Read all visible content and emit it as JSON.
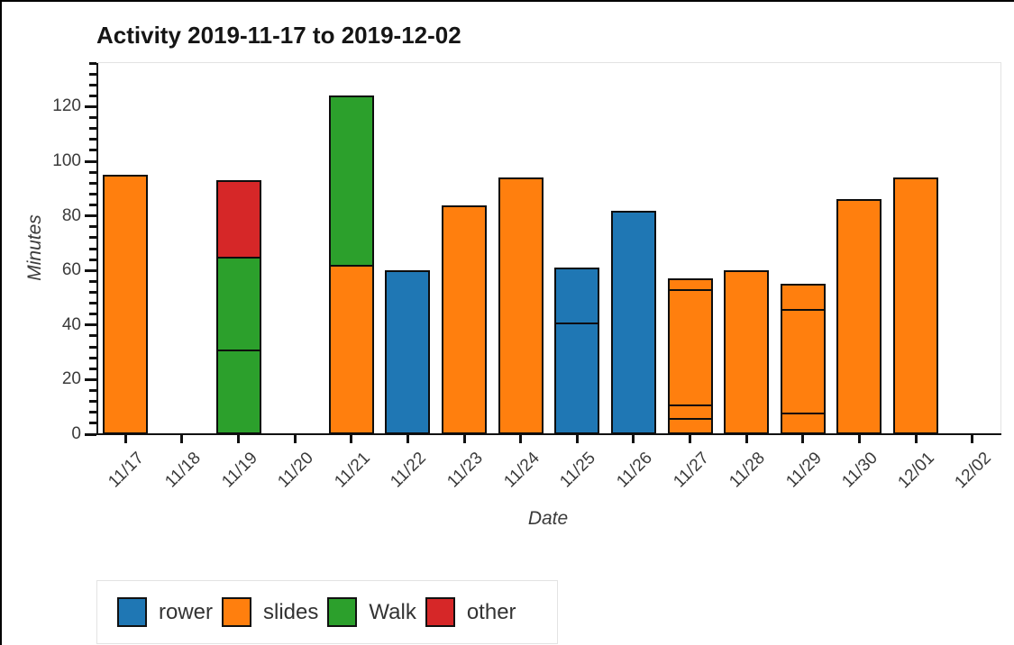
{
  "chart_data": {
    "type": "bar",
    "stacked": true,
    "title": "Activity 2019-11-17 to 2019-12-02",
    "xlabel": "Date",
    "ylabel": "Minutes",
    "categories": [
      "11/17",
      "11/18",
      "11/19",
      "11/20",
      "11/21",
      "11/22",
      "11/23",
      "11/24",
      "11/25",
      "11/26",
      "11/27",
      "11/28",
      "11/29",
      "11/30",
      "12/01",
      "12/02"
    ],
    "yticks": [
      0,
      20,
      40,
      60,
      80,
      100,
      120
    ],
    "minor_tick_step": 4,
    "ylim": [
      0,
      136
    ],
    "grid": "off",
    "legend_position": "bottom-left",
    "colors": {
      "rower": "#1f77b4",
      "slides": "#ff7f0e",
      "Walk": "#2ca02c",
      "other": "#d62728"
    },
    "bars": [
      {
        "date": "11/17",
        "total": 95,
        "segments": [
          {
            "activity": "slides",
            "minutes": 95
          }
        ]
      },
      {
        "date": "11/18",
        "total": 0,
        "segments": []
      },
      {
        "date": "11/19",
        "total": 93,
        "segments": [
          {
            "activity": "Walk",
            "minutes": 31
          },
          {
            "activity": "Walk",
            "minutes": 34
          },
          {
            "activity": "other",
            "minutes": 28
          }
        ]
      },
      {
        "date": "11/20",
        "total": 0,
        "segments": []
      },
      {
        "date": "11/21",
        "total": 124,
        "segments": [
          {
            "activity": "slides",
            "minutes": 62
          },
          {
            "activity": "Walk",
            "minutes": 62
          }
        ]
      },
      {
        "date": "11/22",
        "total": 60,
        "segments": [
          {
            "activity": "rower",
            "minutes": 60
          }
        ]
      },
      {
        "date": "11/23",
        "total": 84,
        "segments": [
          {
            "activity": "slides",
            "minutes": 84
          }
        ]
      },
      {
        "date": "11/24",
        "total": 94,
        "segments": [
          {
            "activity": "slides",
            "minutes": 94
          }
        ]
      },
      {
        "date": "11/25",
        "total": 61,
        "segments": [
          {
            "activity": "rower",
            "minutes": 41
          },
          {
            "activity": "rower",
            "minutes": 20
          }
        ]
      },
      {
        "date": "11/26",
        "total": 82,
        "segments": [
          {
            "activity": "rower",
            "minutes": 82
          }
        ]
      },
      {
        "date": "11/27",
        "total": 57,
        "segments": [
          {
            "activity": "slides",
            "minutes": 6
          },
          {
            "activity": "slides",
            "minutes": 5
          },
          {
            "activity": "slides",
            "minutes": 42
          },
          {
            "activity": "slides",
            "minutes": 4
          }
        ]
      },
      {
        "date": "11/28",
        "total": 60,
        "segments": [
          {
            "activity": "slides",
            "minutes": 60
          }
        ]
      },
      {
        "date": "11/29",
        "total": 55,
        "segments": [
          {
            "activity": "slides",
            "minutes": 8
          },
          {
            "activity": "slides",
            "minutes": 38
          },
          {
            "activity": "slides",
            "minutes": 9
          }
        ]
      },
      {
        "date": "11/30",
        "total": 86,
        "segments": [
          {
            "activity": "slides",
            "minutes": 86
          }
        ]
      },
      {
        "date": "12/01",
        "total": 94,
        "segments": [
          {
            "activity": "slides",
            "minutes": 94
          }
        ]
      },
      {
        "date": "12/02",
        "total": 0,
        "segments": []
      }
    ]
  },
  "legend": {
    "items": [
      {
        "label": "rower",
        "color": "#1f77b4"
      },
      {
        "label": "slides",
        "color": "#ff7f0e"
      },
      {
        "label": "Walk",
        "color": "#2ca02c"
      },
      {
        "label": "other",
        "color": "#d62728"
      }
    ]
  }
}
